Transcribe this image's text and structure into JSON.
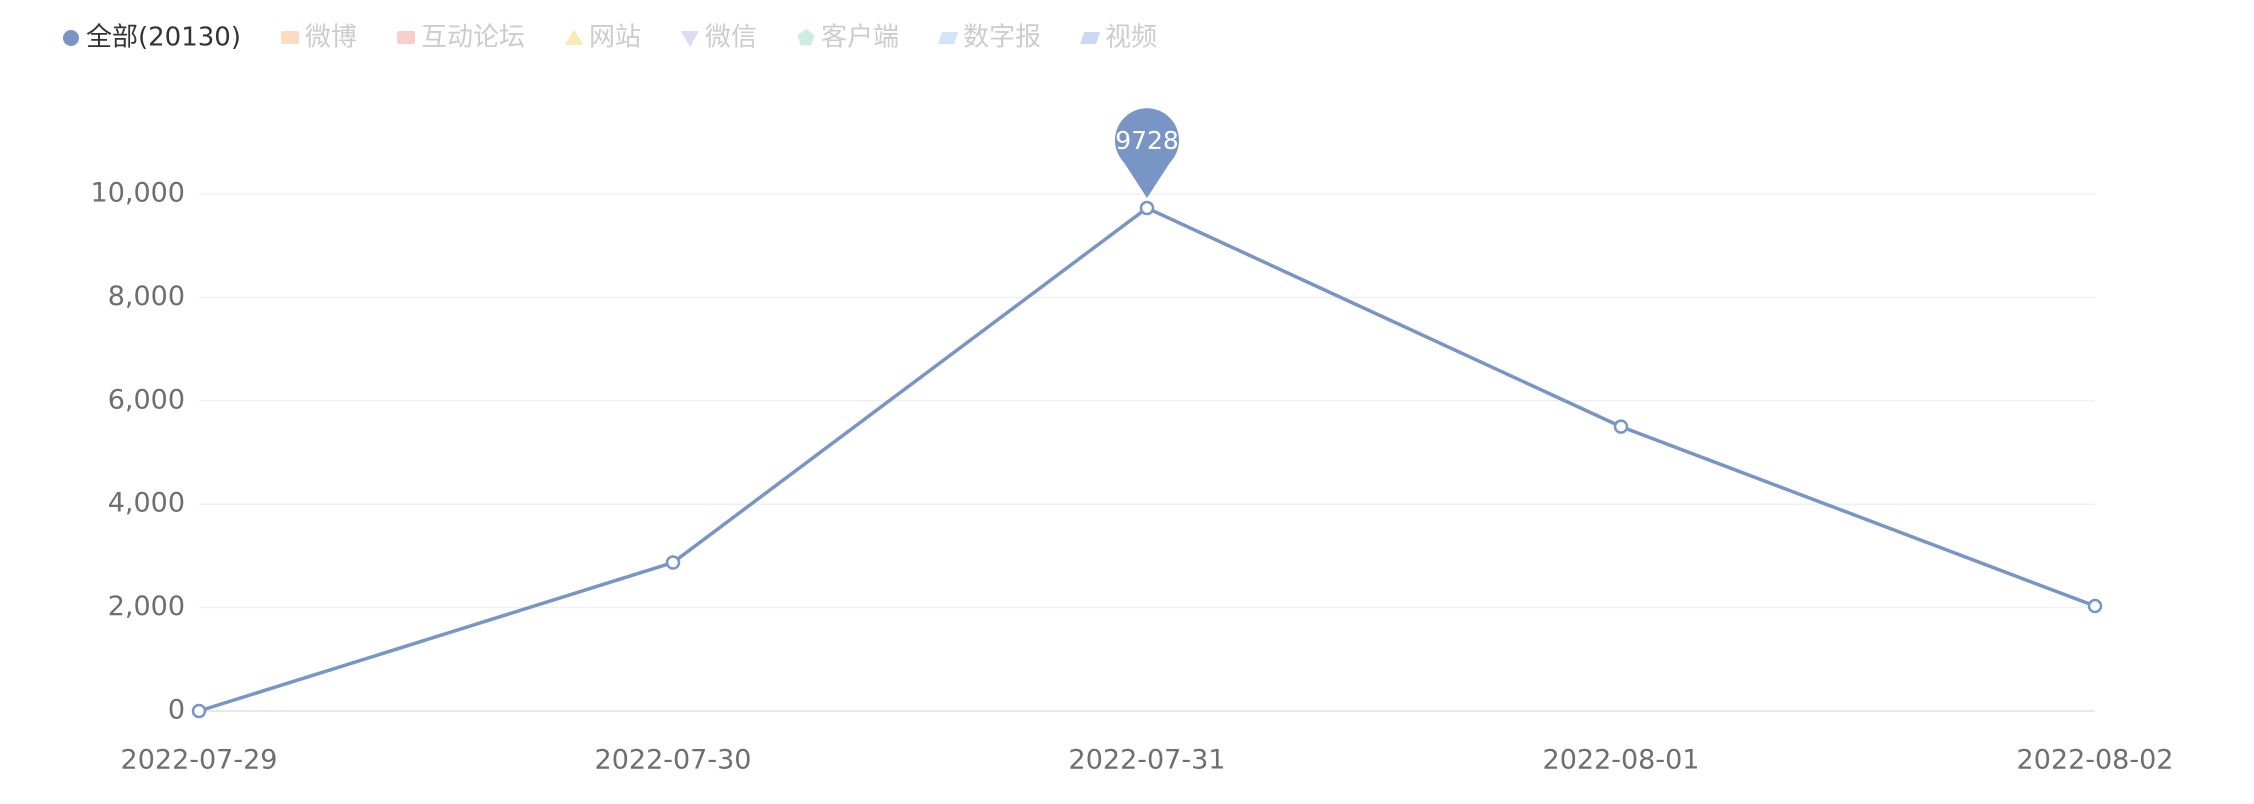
{
  "chart_data": {
    "type": "line",
    "categories": [
      "2022-07-29",
      "2022-07-30",
      "2022-07-31",
      "2022-08-01",
      "2022-08-02"
    ],
    "series": [
      {
        "name": "全部(20130)",
        "color": "#7895c5",
        "symbol": "circle",
        "active": true,
        "values": [
          0,
          2872,
          9728,
          5500,
          2030
        ]
      },
      {
        "name": "微博",
        "color": "#fbdcc0",
        "symbol": "rect",
        "active": false
      },
      {
        "name": "互动论坛",
        "color": "#f9cfcc",
        "symbol": "rect",
        "active": false
      },
      {
        "name": "网站",
        "color": "#fbeab8",
        "symbol": "triangle",
        "active": false
      },
      {
        "name": "微信",
        "color": "#dcdcf2",
        "symbol": "triangle-down",
        "active": false
      },
      {
        "name": "客户端",
        "color": "#cdeedf",
        "symbol": "pentagon",
        "active": false
      },
      {
        "name": "数字报",
        "color": "#d2e5f6",
        "symbol": "parallelogram",
        "active": false
      },
      {
        "name": "视频",
        "color": "#cbd8f0",
        "symbol": "parallelogram",
        "active": false
      }
    ],
    "ylim": [
      0,
      10000
    ],
    "yticks": [
      0,
      {
        "value": 2000,
        "label": "2,000"
      },
      {
        "value": 4000,
        "label": "4,000"
      },
      {
        "value": 6000,
        "label": "6,000"
      },
      {
        "value": 8000,
        "label": "8,000"
      },
      {
        "value": 10000,
        "label": "10,000"
      }
    ],
    "grid": true,
    "max_pin": true
  }
}
